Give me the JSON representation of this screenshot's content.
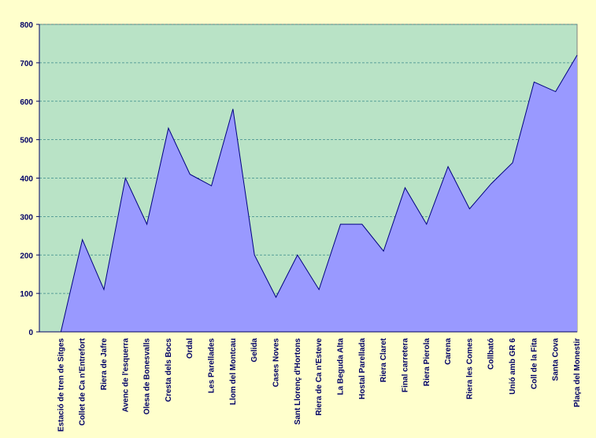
{
  "chart_data": {
    "type": "area",
    "categories": [
      "Estació de tren de Sitges",
      "Collet de Ca n'Entrefort",
      "Riera de Jafre",
      "Avenc de l'esquerra",
      "Olesa de Bonesvalls",
      "Cresta dels Bocs",
      "Ordal",
      "Les Parellades",
      "Llom del Montcau",
      "Gelida",
      "Cases Noves",
      "Sant Llorenç d'Hortons",
      "Riera de Ca n'Esteve",
      "La Beguda Alta",
      "Hostal Parellada",
      "Riera Claret",
      "Final carretera",
      "Riera Pierola",
      "Carena",
      "Riera les Comes",
      "Collbató",
      "Unió amb GR 6",
      "Coll de la Fita",
      "Santa Cova",
      "Plaça del Monestir"
    ],
    "values": [
      0,
      240,
      110,
      400,
      280,
      530,
      410,
      380,
      580,
      200,
      90,
      200,
      110,
      280,
      280,
      210,
      375,
      280,
      430,
      320,
      385,
      440,
      650,
      625,
      720
    ],
    "color": "#9999ff",
    "ylim": [
      0,
      800
    ],
    "yticks": [
      0,
      100,
      200,
      300,
      400,
      500,
      600,
      700,
      800
    ],
    "grid": true
  }
}
